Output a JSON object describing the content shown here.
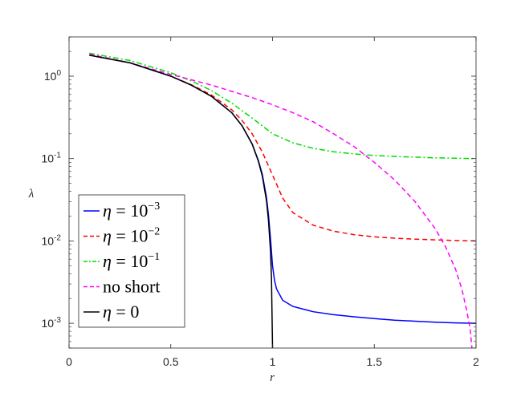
{
  "chart_data": {
    "type": "line",
    "title": "",
    "xlabel": "r",
    "ylabel": "λ",
    "xlim": [
      0,
      2
    ],
    "ylim": [
      0.0005,
      3
    ],
    "yscale": "log",
    "grid": false,
    "legend_position": "bottom-left",
    "x_ticks": [
      "0",
      "0.5",
      "1",
      "1.5",
      "2"
    ],
    "x_tick_values": [
      0,
      0.5,
      1,
      1.5,
      2
    ],
    "y_ticks": [
      {
        "value": 1,
        "base": "10",
        "exp": "0"
      },
      {
        "value": 0.1,
        "base": "10",
        "exp": "-1"
      },
      {
        "value": 0.01,
        "base": "10",
        "exp": "-2"
      },
      {
        "value": 0.001,
        "base": "10",
        "exp": "-3"
      }
    ],
    "series": [
      {
        "name": "η = 10^-3",
        "legend_lhs": "η",
        "legend_base": "10",
        "legend_exp": "−3",
        "color": "#0000ff",
        "dash": "",
        "x": [
          0.1,
          0.3,
          0.5,
          0.6,
          0.7,
          0.8,
          0.85,
          0.9,
          0.93,
          0.95,
          0.97,
          0.98,
          0.99,
          1.0,
          1.01,
          1.02,
          1.05,
          1.1,
          1.2,
          1.3,
          1.4,
          1.5,
          1.6,
          1.7,
          1.8,
          1.9,
          2.0
        ],
        "y": [
          1.8,
          1.45,
          1.0,
          0.78,
          0.57,
          0.36,
          0.25,
          0.15,
          0.095,
          0.064,
          0.034,
          0.021,
          0.0105,
          0.005,
          0.0033,
          0.0026,
          0.0019,
          0.0016,
          0.00138,
          0.00127,
          0.0012,
          0.00114,
          0.00109,
          0.00106,
          0.00103,
          0.00101,
          0.001
        ]
      },
      {
        "name": "η = 10^-2",
        "legend_lhs": "η",
        "legend_base": "10",
        "legend_exp": "−2",
        "color": "#ff0000",
        "dash": "6,4",
        "x": [
          0.1,
          0.3,
          0.5,
          0.6,
          0.7,
          0.8,
          0.85,
          0.9,
          0.95,
          1.0,
          1.05,
          1.1,
          1.2,
          1.3,
          1.4,
          1.5,
          1.6,
          1.7,
          1.8,
          1.9,
          2.0
        ],
        "y": [
          1.8,
          1.45,
          1.0,
          0.79,
          0.59,
          0.39,
          0.29,
          0.2,
          0.12,
          0.063,
          0.033,
          0.022,
          0.0155,
          0.0131,
          0.0119,
          0.0112,
          0.0108,
          0.0105,
          0.0103,
          0.0101,
          0.01
        ]
      },
      {
        "name": "η = 10^-1",
        "legend_lhs": "η",
        "legend_base": "10",
        "legend_exp": "−1",
        "color": "#00dd00",
        "dash": "7,3,2,3",
        "x": [
          0.1,
          0.3,
          0.5,
          0.6,
          0.7,
          0.8,
          0.9,
          1.0,
          1.1,
          1.2,
          1.3,
          1.4,
          1.5,
          1.6,
          1.7,
          1.8,
          1.9,
          2.0
        ],
        "y": [
          1.9,
          1.55,
          1.1,
          0.88,
          0.67,
          0.47,
          0.31,
          0.2,
          0.155,
          0.133,
          0.121,
          0.114,
          0.109,
          0.106,
          0.104,
          0.102,
          0.101,
          0.1
        ]
      },
      {
        "name": "no short",
        "legend_lhs": "no short",
        "legend_base": "",
        "legend_exp": "",
        "color": "#ff00ff",
        "dash": "6,4",
        "x": [
          0.1,
          0.3,
          0.5,
          0.7,
          0.9,
          1.0,
          1.1,
          1.2,
          1.3,
          1.4,
          1.5,
          1.6,
          1.7,
          1.8,
          1.85,
          1.9,
          1.93,
          1.95,
          1.97,
          1.98
        ],
        "y": [
          1.85,
          1.45,
          1.05,
          0.78,
          0.55,
          0.45,
          0.36,
          0.28,
          0.2,
          0.14,
          0.09,
          0.055,
          0.03,
          0.014,
          0.0085,
          0.0045,
          0.0026,
          0.0016,
          0.0009,
          0.0005
        ]
      },
      {
        "name": "η = 0",
        "legend_lhs": "η",
        "legend_base": "0",
        "legend_exp": "",
        "color": "#000000",
        "dash": "",
        "x": [
          0.1,
          0.3,
          0.5,
          0.6,
          0.7,
          0.8,
          0.85,
          0.9,
          0.93,
          0.95,
          0.97,
          0.98,
          0.99,
          0.995,
          1.0
        ],
        "y": [
          1.8,
          1.45,
          1.0,
          0.78,
          0.57,
          0.36,
          0.25,
          0.15,
          0.093,
          0.061,
          0.031,
          0.018,
          0.0075,
          0.0035,
          0.0005
        ]
      }
    ]
  }
}
